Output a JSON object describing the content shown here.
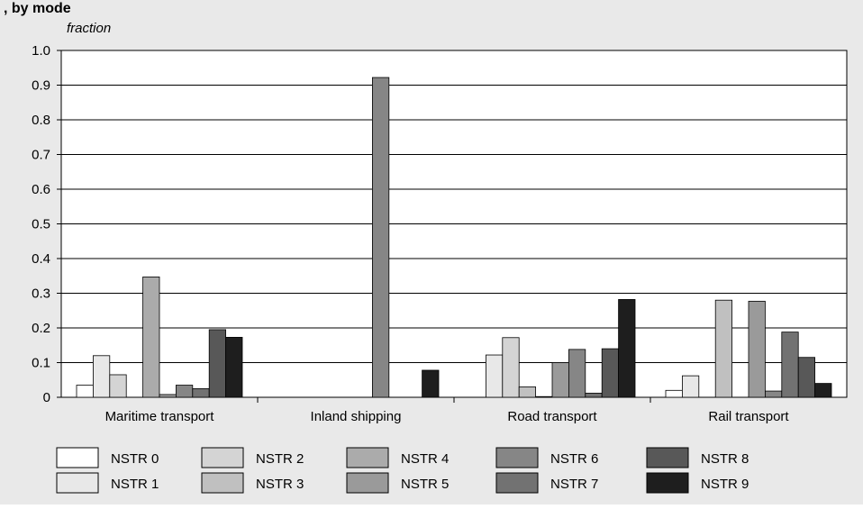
{
  "heading": ", by mode",
  "chart_data": {
    "type": "bar",
    "ylabel": "fraction",
    "ylim": [
      0,
      1.0
    ],
    "yticks": [
      "0",
      "0.1",
      "0.2",
      "0.3",
      "0.4",
      "0.5",
      "0.6",
      "0.7",
      "0.8",
      "0.9",
      "1.0"
    ],
    "grid": true,
    "legend_position": "bottom",
    "categories": [
      "Maritime transport",
      "Inland shipping",
      "Road transport",
      "Rail transport"
    ],
    "series": [
      {
        "name": "NSTR 0",
        "color": "#ffffff",
        "values": [
          0.035,
          0.0,
          0.0,
          0.02
        ]
      },
      {
        "name": "NSTR 1",
        "color": "#e8e8e8",
        "values": [
          0.12,
          0.0,
          0.122,
          0.062
        ]
      },
      {
        "name": "NSTR 2",
        "color": "#d4d4d4",
        "values": [
          0.065,
          0.0,
          0.172,
          0.0
        ]
      },
      {
        "name": "NSTR 3",
        "color": "#c0c0c0",
        "values": [
          0.0,
          0.0,
          0.03,
          0.28
        ]
      },
      {
        "name": "NSTR 4",
        "color": "#ababab",
        "values": [
          0.347,
          0.0,
          0.002,
          0.0
        ]
      },
      {
        "name": "NSTR 5",
        "color": "#9a9a9a",
        "values": [
          0.008,
          0.0,
          0.1,
          0.277
        ]
      },
      {
        "name": "NSTR 6",
        "color": "#868686",
        "values": [
          0.035,
          0.922,
          0.138,
          0.018
        ]
      },
      {
        "name": "NSTR 7",
        "color": "#727272",
        "values": [
          0.025,
          0.0,
          0.012,
          0.188
        ]
      },
      {
        "name": "NSTR 8",
        "color": "#585858",
        "values": [
          0.195,
          0.0,
          0.14,
          0.115
        ]
      },
      {
        "name": "NSTR 9",
        "color": "#1e1e1e",
        "values": [
          0.173,
          0.078,
          0.282,
          0.04
        ]
      }
    ]
  }
}
